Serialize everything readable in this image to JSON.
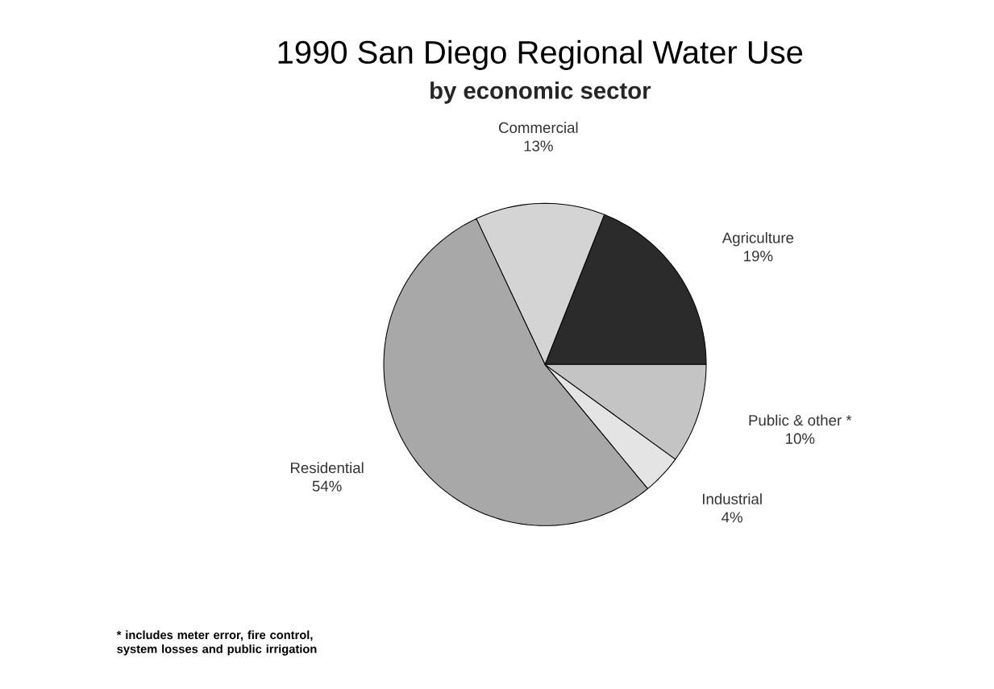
{
  "chart_data": {
    "type": "pie",
    "title": "1990 San Diego Regional Water Use",
    "subtitle": "by economic sector",
    "categories": [
      "Agriculture",
      "Commercial",
      "Residential",
      "Industrial",
      "Public & other *"
    ],
    "values": [
      19,
      13,
      54,
      4,
      10
    ],
    "value_labels": [
      "19%",
      "13%",
      "54%",
      "4%",
      "10%"
    ],
    "colors": [
      "#2b2b2b",
      "#d4d4d4",
      "#a8a8a8",
      "#e4e4e4",
      "#c4c4c4"
    ],
    "annotations": [
      "* includes meter error, fire control, system losses and public irrigation"
    ]
  }
}
